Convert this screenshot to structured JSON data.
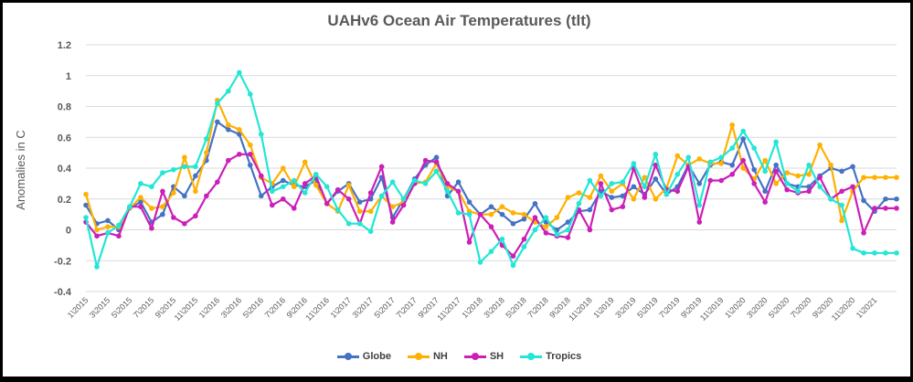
{
  "chart_data": {
    "type": "line",
    "title": "UAHv6 Ocean Air Temperatures (tlt)",
    "xlabel": "",
    "ylabel": "Anomalies in C",
    "ylim": [
      -0.4,
      1.2
    ],
    "yticks": [
      "1.2",
      "1",
      "0.8",
      "0.6",
      "0.4",
      "0.2",
      "0",
      "-0.2",
      "-0.4"
    ],
    "grid": true,
    "legend_position": "bottom",
    "categories": [
      "1\\2015",
      "2\\2015",
      "3\\2015",
      "4\\2015",
      "5\\2015",
      "6\\2015",
      "7\\2015",
      "8\\2015",
      "9\\2015",
      "10\\2015",
      "11\\2015",
      "12\\2015",
      "1\\2016",
      "2\\2016",
      "3\\2016",
      "4\\2016",
      "5\\2016",
      "6\\2016",
      "7\\2016",
      "8\\2016",
      "9\\2016",
      "10\\2016",
      "11\\2016",
      "12\\2016",
      "1\\2017",
      "2\\2017",
      "3\\2017",
      "4\\2017",
      "5\\2017",
      "6\\2017",
      "7\\2017",
      "8\\2017",
      "9\\2017",
      "10\\2017",
      "11\\2017",
      "12\\2017",
      "1\\2018",
      "2\\2018",
      "3\\2018",
      "4\\2018",
      "5\\2018",
      "6\\2018",
      "7\\2018",
      "8\\2018",
      "9\\2018",
      "10\\2018",
      "11\\2018",
      "12\\2018",
      "1\\2019",
      "2\\2019",
      "3\\2019",
      "4\\2019",
      "5\\2019",
      "6\\2019",
      "7\\2019",
      "8\\2019",
      "9\\2019",
      "10\\2019",
      "11\\2019",
      "12\\2019",
      "1\\2020",
      "2\\2020",
      "3\\2020",
      "4\\2020",
      "5\\2020",
      "6\\2020",
      "7\\2020",
      "8\\2020",
      "9\\2020",
      "10\\2020",
      "11\\2020",
      "12\\2020",
      "1\\2021",
      "2\\2021",
      "3\\2021"
    ],
    "tick_labels": [
      "1\\2015",
      "3\\2015",
      "5\\2015",
      "7\\2015",
      "9\\2015",
      "11\\2015",
      "1\\2016",
      "3\\2016",
      "5\\2016",
      "7\\2016",
      "9\\2016",
      "11\\2016",
      "1\\2017",
      "3\\2017",
      "5\\2017",
      "7\\2017",
      "9\\2017",
      "11\\2017",
      "1\\2018",
      "3\\2018",
      "5\\2018",
      "7\\2018",
      "9\\2018",
      "11\\2018",
      "1\\2019",
      "3\\2019",
      "5\\2019",
      "7\\2019",
      "9\\2019",
      "11\\2019",
      "1\\2020",
      "3\\2020",
      "5\\2020",
      "7\\2020",
      "9\\2020",
      "11\\2020",
      "1\\2021"
    ],
    "series": [
      {
        "name": "Globe",
        "color": "#4472C4",
        "values": [
          0.16,
          0.04,
          0.06,
          0.0,
          0.14,
          0.18,
          0.05,
          0.1,
          0.28,
          0.22,
          0.35,
          0.45,
          0.7,
          0.65,
          0.62,
          0.42,
          0.22,
          0.28,
          0.32,
          0.29,
          0.28,
          0.32,
          0.17,
          0.25,
          0.3,
          0.18,
          0.2,
          0.34,
          0.08,
          0.2,
          0.33,
          0.42,
          0.47,
          0.22,
          0.31,
          0.18,
          0.1,
          0.15,
          0.1,
          0.04,
          0.07,
          0.17,
          0.05,
          0.0,
          0.05,
          0.12,
          0.13,
          0.25,
          0.21,
          0.22,
          0.28,
          0.23,
          0.33,
          0.23,
          0.28,
          0.42,
          0.3,
          0.42,
          0.44,
          0.42,
          0.59,
          0.39,
          0.25,
          0.42,
          0.3,
          0.28,
          0.28,
          0.35,
          0.4,
          0.38,
          0.41,
          0.19,
          0.12,
          0.2,
          0.2
        ]
      },
      {
        "name": "NH",
        "color": "#FFB000",
        "values": [
          0.23,
          0.0,
          0.02,
          0.02,
          0.14,
          0.21,
          0.14,
          0.15,
          0.24,
          0.47,
          0.25,
          0.5,
          0.84,
          0.68,
          0.65,
          0.55,
          0.34,
          0.3,
          0.4,
          0.28,
          0.44,
          0.29,
          0.17,
          0.12,
          0.29,
          0.12,
          0.12,
          0.22,
          0.15,
          0.18,
          0.3,
          0.31,
          0.43,
          0.28,
          0.25,
          0.12,
          0.1,
          0.1,
          0.15,
          0.11,
          0.1,
          0.05,
          0.02,
          0.08,
          0.21,
          0.24,
          0.21,
          0.35,
          0.25,
          0.3,
          0.2,
          0.34,
          0.2,
          0.27,
          0.48,
          0.42,
          0.46,
          0.43,
          0.43,
          0.68,
          0.4,
          0.33,
          0.45,
          0.3,
          0.37,
          0.35,
          0.36,
          0.55,
          0.42,
          0.06,
          0.25,
          0.34,
          0.34,
          0.34,
          0.34
        ]
      },
      {
        "name": "SH",
        "color": "#CC1FB8",
        "values": [
          0.05,
          -0.04,
          -0.02,
          -0.04,
          0.15,
          0.15,
          0.01,
          0.25,
          0.08,
          0.04,
          0.09,
          0.22,
          0.31,
          0.45,
          0.49,
          0.49,
          0.35,
          0.16,
          0.2,
          0.14,
          0.3,
          0.35,
          0.17,
          0.26,
          0.2,
          0.04,
          0.24,
          0.41,
          0.05,
          0.16,
          0.3,
          0.45,
          0.44,
          0.3,
          0.25,
          -0.08,
          0.1,
          0.02,
          -0.1,
          -0.17,
          -0.06,
          0.08,
          -0.02,
          -0.04,
          -0.05,
          0.13,
          0.0,
          0.3,
          0.13,
          0.15,
          0.4,
          0.21,
          0.42,
          0.26,
          0.25,
          0.41,
          0.05,
          0.32,
          0.32,
          0.36,
          0.45,
          0.3,
          0.18,
          0.38,
          0.26,
          0.24,
          0.25,
          0.34,
          0.2,
          0.25,
          0.28,
          -0.02,
          0.14,
          0.14,
          0.14
        ]
      },
      {
        "name": "Tropics",
        "color": "#22E6D6",
        "values": [
          0.08,
          -0.24,
          -0.02,
          0.03,
          0.15,
          0.3,
          0.28,
          0.37,
          0.39,
          0.41,
          0.41,
          0.59,
          0.82,
          0.9,
          1.02,
          0.88,
          0.62,
          0.25,
          0.28,
          0.32,
          0.24,
          0.36,
          0.28,
          0.13,
          0.04,
          0.04,
          -0.01,
          0.22,
          0.31,
          0.2,
          0.32,
          0.3,
          0.38,
          0.25,
          0.11,
          0.1,
          -0.21,
          -0.14,
          -0.06,
          -0.23,
          -0.11,
          0.0,
          0.08,
          -0.03,
          0.0,
          0.17,
          0.32,
          0.22,
          0.3,
          0.31,
          0.43,
          0.28,
          0.49,
          0.23,
          0.36,
          0.47,
          0.16,
          0.44,
          0.47,
          0.53,
          0.64,
          0.53,
          0.38,
          0.57,
          0.3,
          0.25,
          0.42,
          0.28,
          0.2,
          0.16,
          -0.12,
          -0.15,
          -0.15,
          -0.15,
          -0.15
        ]
      }
    ]
  }
}
